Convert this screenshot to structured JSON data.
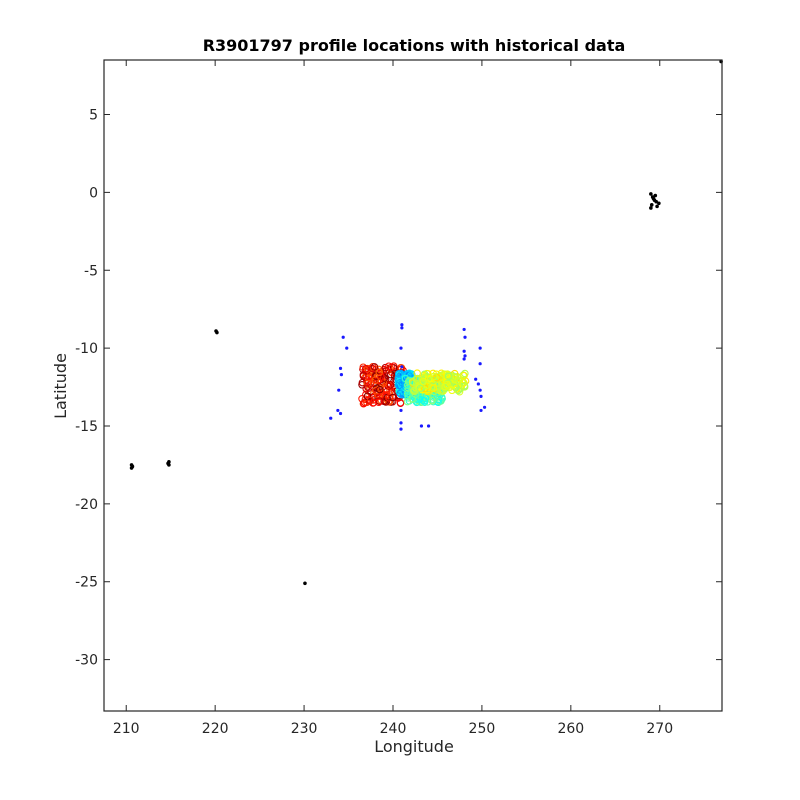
{
  "chart_data": {
    "type": "scatter",
    "title": "R3901797 profile locations with historical data",
    "xlabel": "Longitude",
    "ylabel": "Latitude",
    "xlim": [
      207.5,
      277.0
    ],
    "ylim": [
      -33.3,
      8.5
    ],
    "xticks": [
      210,
      220,
      230,
      240,
      250,
      260,
      270
    ],
    "yticks": [
      5,
      0,
      -5,
      -10,
      -15,
      -20,
      -25,
      -30
    ],
    "xtick_labels": [
      "210",
      "220",
      "230",
      "240",
      "250",
      "260",
      "270"
    ],
    "ytick_labels": [
      "5",
      "0",
      "-5",
      "-10",
      "-15",
      "-20",
      "-25",
      "-30"
    ],
    "grid": false,
    "legend": "none",
    "colors": {
      "land": "#000000",
      "historical": "#1a1aff",
      "profile_colormap": "jet"
    },
    "land_points": [
      [
        210.6,
        -17.5
      ],
      [
        210.6,
        -17.7
      ],
      [
        210.7,
        -17.6
      ],
      [
        214.8,
        -17.3
      ],
      [
        214.8,
        -17.5
      ],
      [
        214.7,
        -17.4
      ],
      [
        220.1,
        -8.9
      ],
      [
        220.2,
        -9.0
      ],
      [
        230.1,
        -25.1
      ],
      [
        269.0,
        -0.1
      ],
      [
        269.2,
        -0.3
      ],
      [
        269.4,
        -0.5
      ],
      [
        269.6,
        -0.6
      ],
      [
        269.9,
        -0.7
      ],
      [
        269.1,
        -0.8
      ],
      [
        269.0,
        -1.0
      ],
      [
        269.3,
        -0.4
      ],
      [
        269.7,
        -0.9
      ],
      [
        269.5,
        -0.2
      ],
      [
        276.9,
        8.4
      ]
    ],
    "historical_points": [
      [
        234.4,
        -9.3
      ],
      [
        234.8,
        -10.0
      ],
      [
        234.1,
        -11.3
      ],
      [
        234.2,
        -11.7
      ],
      [
        233.9,
        -12.7
      ],
      [
        233.8,
        -14.0
      ],
      [
        234.1,
        -14.2
      ],
      [
        233.0,
        -14.5
      ],
      [
        241.0,
        -8.5
      ],
      [
        241.0,
        -8.7
      ],
      [
        240.9,
        -10.0
      ],
      [
        241.0,
        -11.2
      ],
      [
        240.9,
        -14.0
      ],
      [
        240.9,
        -14.8
      ],
      [
        240.9,
        -15.2
      ],
      [
        243.2,
        -15.0
      ],
      [
        244.0,
        -15.0
      ],
      [
        248.0,
        -8.8
      ],
      [
        248.1,
        -9.3
      ],
      [
        248.0,
        -10.2
      ],
      [
        248.1,
        -10.5
      ],
      [
        248.0,
        -10.7
      ],
      [
        249.8,
        -10.0
      ],
      [
        249.8,
        -11.0
      ],
      [
        249.3,
        -12.0
      ],
      [
        249.6,
        -12.3
      ],
      [
        249.8,
        -12.7
      ],
      [
        249.9,
        -13.1
      ],
      [
        250.3,
        -13.8
      ],
      [
        249.9,
        -14.0
      ]
    ],
    "profile_clusters": [
      {
        "lon": [
          236.5,
          241.2
        ],
        "lat": [
          -13.6,
          -11.1
        ],
        "values": [
          0.78,
          1.0
        ]
      },
      {
        "lon": [
          240.6,
          242.2
        ],
        "lat": [
          -13.0,
          -11.6
        ],
        "values": [
          0.22,
          0.42
        ]
      },
      {
        "lon": [
          241.6,
          245.6
        ],
        "lat": [
          -13.5,
          -12.0
        ],
        "values": [
          0.38,
          0.52
        ]
      },
      {
        "lon": [
          242.2,
          248.2
        ],
        "lat": [
          -12.8,
          -11.6
        ],
        "values": [
          0.52,
          0.66
        ]
      }
    ]
  }
}
